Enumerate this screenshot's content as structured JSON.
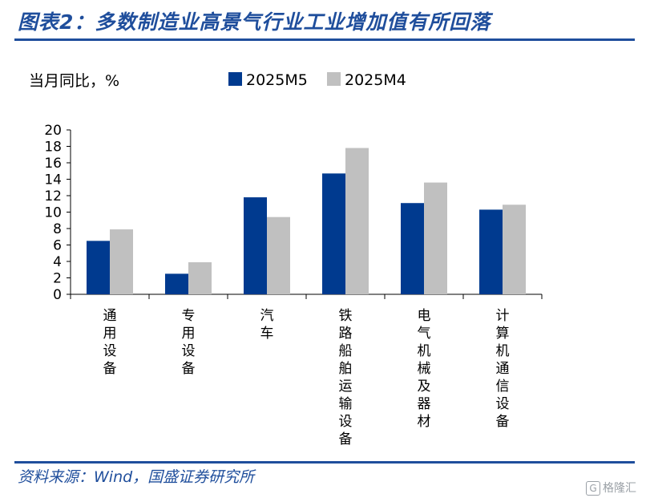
{
  "header": {
    "title": "图表2：多数制造业高景气行业工业增加值有所回落"
  },
  "footer": {
    "source": "资料来源：Wind，国盛证券研究所"
  },
  "watermark": {
    "icon": "G",
    "text": "格隆汇"
  },
  "colors": {
    "accent": "#1f4e9c",
    "series1": "#003a8f",
    "series2": "#c0c0c0"
  },
  "chart_data": {
    "type": "bar",
    "title": "",
    "ylabel": "当月同比，%",
    "xlabel": "",
    "ylim": [
      0,
      20
    ],
    "yticks": [
      0,
      2,
      4,
      6,
      8,
      10,
      12,
      14,
      16,
      18,
      20
    ],
    "grid": false,
    "legend_position": "top",
    "categories": [
      "通用设备",
      "专用设备",
      "汽车",
      "铁路船舶运输设备",
      "电气机械及器材",
      "计算机通信设备"
    ],
    "series": [
      {
        "name": "2025M5",
        "color": "#003a8f",
        "values": [
          6.5,
          2.5,
          11.8,
          14.7,
          11.1,
          10.3
        ]
      },
      {
        "name": "2025M4",
        "color": "#c0c0c0",
        "values": [
          7.9,
          3.9,
          9.4,
          17.8,
          13.6,
          10.9
        ]
      }
    ]
  }
}
